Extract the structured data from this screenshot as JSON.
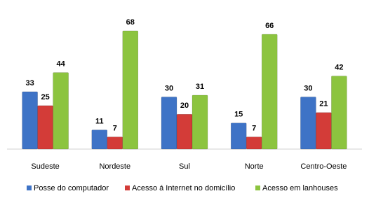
{
  "chart_data": {
    "type": "bar",
    "categories": [
      "Sudeste",
      "Nordeste",
      "Sul",
      "Norte",
      "Centro-Oeste"
    ],
    "series": [
      {
        "name": "Posse do computador",
        "color": "#3e73c6",
        "values": [
          33,
          11,
          30,
          15,
          30
        ]
      },
      {
        "name": "Acesso á Internet no domicílio",
        "color": "#d33c38",
        "values": [
          25,
          7,
          20,
          7,
          21
        ]
      },
      {
        "name": "Acesso em lanhouses",
        "color": "#8cc43f",
        "values": [
          44,
          68,
          31,
          66,
          42
        ]
      }
    ],
    "legend": "bottom"
  }
}
